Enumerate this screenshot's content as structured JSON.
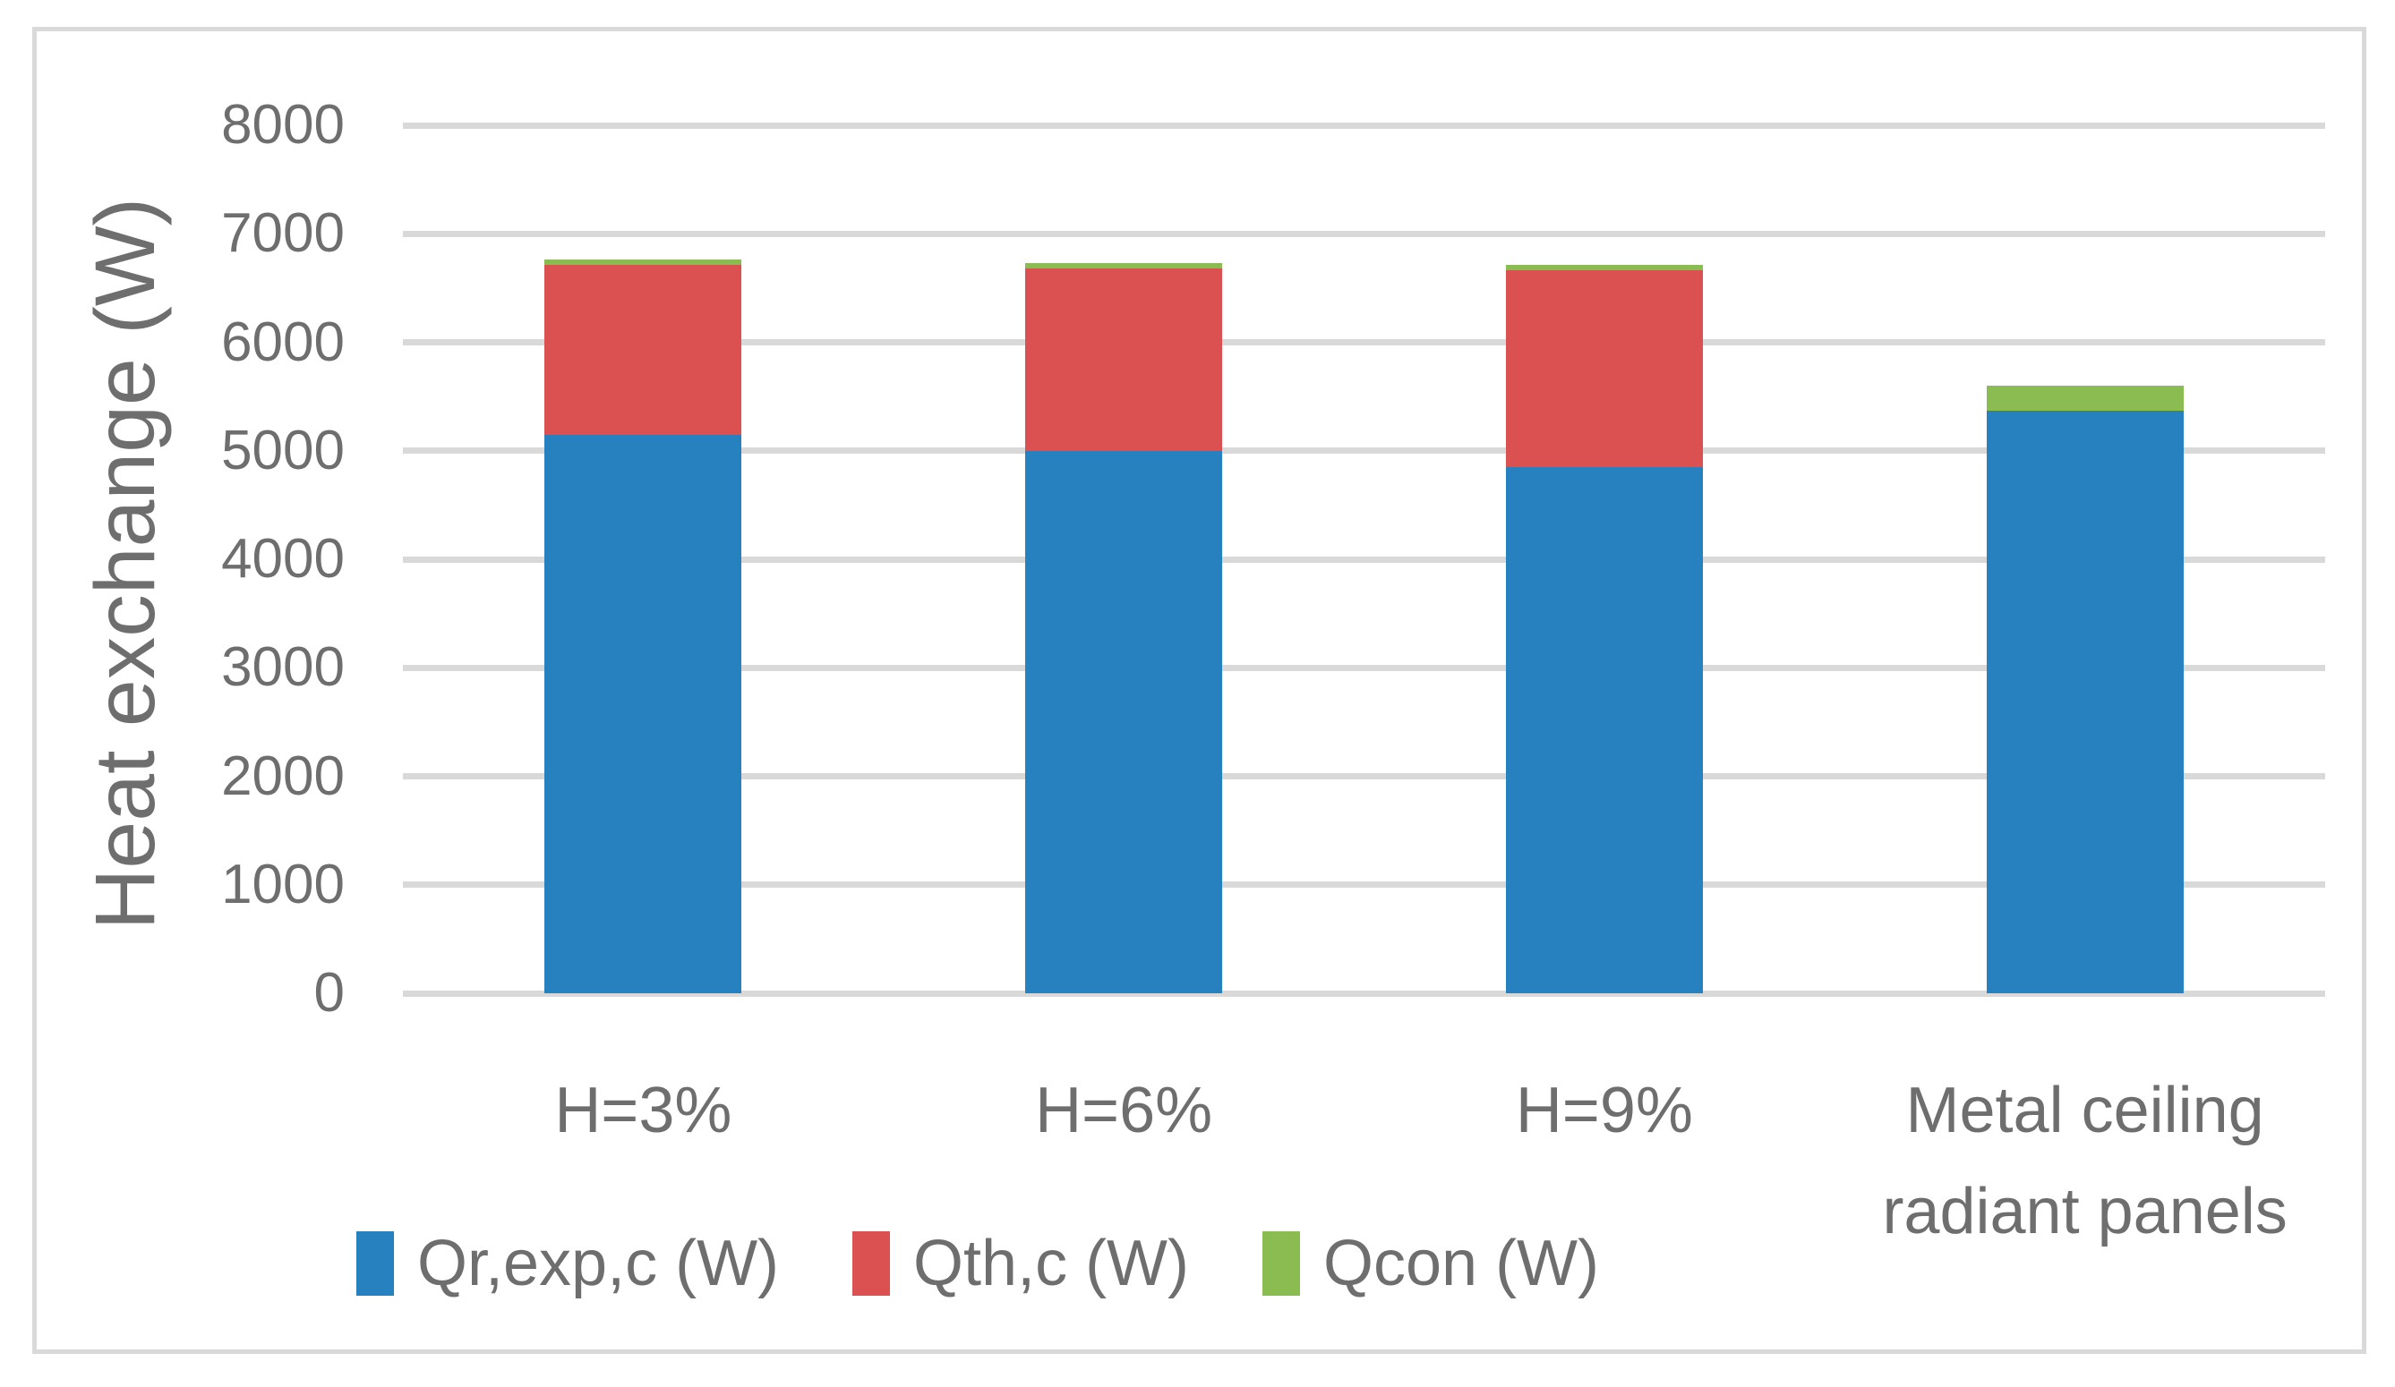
{
  "figure": {
    "background": "#FFFFFF",
    "border_color": "#D9D9D9",
    "text_color": "#6E6E6E",
    "gridline_color": "#D9D9D9"
  },
  "chart_data": {
    "type": "bar",
    "stacked": true,
    "title": "",
    "ylabel": "Heat exchange (W)",
    "xlabel": "",
    "ylim": [
      0,
      8000
    ],
    "ytick_step": 1000,
    "yticks": [
      "0",
      "1000",
      "2000",
      "3000",
      "4000",
      "5000",
      "6000",
      "7000",
      "8000"
    ],
    "grid": true,
    "legend_position": "bottom",
    "categories": [
      "H=3%",
      "H=6%",
      "H=9%",
      "Metal ceiling radiant panels"
    ],
    "series": [
      {
        "name": "Qr,exp,c (W)",
        "color": "#2681BE",
        "values": [
          5150,
          5000,
          4850,
          5370
        ]
      },
      {
        "name": "Qth,c (W)",
        "color": "#DB5151",
        "values": [
          1560,
          1680,
          1810,
          0
        ]
      },
      {
        "name": "Qcon (W)",
        "color": "#8BBC52",
        "values": [
          50,
          50,
          50,
          230
        ]
      }
    ],
    "totals": [
      6760,
      6730,
      6710,
      5600
    ]
  }
}
